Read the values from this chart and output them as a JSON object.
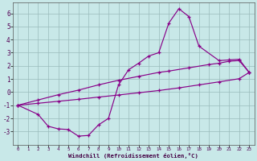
{
  "bg_color": "#c8e8e8",
  "grid_color": "#99bbbb",
  "line_color": "#880088",
  "xlabel": "Windchill (Refroidissement éolien,°C)",
  "xlim": [
    -0.5,
    23.5
  ],
  "ylim": [
    -4.0,
    6.8
  ],
  "xticks": [
    0,
    1,
    2,
    3,
    4,
    5,
    6,
    7,
    8,
    9,
    10,
    11,
    12,
    13,
    14,
    15,
    16,
    17,
    18,
    19,
    20,
    21,
    22,
    23
  ],
  "yticks": [
    -3,
    -2,
    -1,
    0,
    1,
    2,
    3,
    4,
    5,
    6
  ],
  "curve1_x": [
    0,
    2,
    3,
    4,
    5,
    6,
    7,
    8,
    9,
    10,
    11,
    12,
    13,
    14,
    15,
    16,
    17,
    18,
    20,
    21,
    22,
    23
  ],
  "curve1_y": [
    -1.0,
    -1.7,
    -2.6,
    -2.8,
    -2.85,
    -3.35,
    -3.3,
    -2.5,
    -2.0,
    0.55,
    1.7,
    2.2,
    2.75,
    3.0,
    5.25,
    6.35,
    5.75,
    3.5,
    2.4,
    2.45,
    2.5,
    1.5
  ],
  "curve2_x": [
    0,
    2,
    4,
    6,
    8,
    10,
    12,
    14,
    15,
    17,
    19,
    20,
    21,
    22,
    23
  ],
  "curve2_y": [
    -1.0,
    -0.6,
    -0.2,
    0.15,
    0.55,
    0.9,
    1.2,
    1.5,
    1.6,
    1.85,
    2.1,
    2.2,
    2.35,
    2.4,
    1.5
  ],
  "curve3_x": [
    0,
    2,
    4,
    6,
    8,
    10,
    12,
    14,
    16,
    18,
    20,
    22,
    23
  ],
  "curve3_y": [
    -1.0,
    -0.85,
    -0.7,
    -0.55,
    -0.38,
    -0.22,
    -0.05,
    0.12,
    0.32,
    0.55,
    0.78,
    1.02,
    1.5
  ]
}
